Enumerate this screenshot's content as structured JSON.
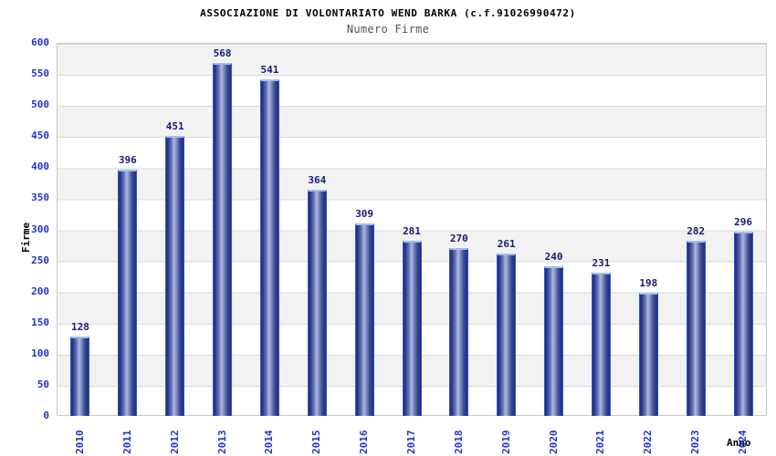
{
  "chart_data": {
    "type": "bar",
    "title": "ASSOCIAZIONE DI VOLONTARIATO WEND BARKA (c.f.91026990472)",
    "subtitle": "Numero Firme",
    "xlabel": "Anno",
    "ylabel": "Firme",
    "categories": [
      "2010",
      "2011",
      "2012",
      "2013",
      "2014",
      "2015",
      "2016",
      "2017",
      "2018",
      "2019",
      "2020",
      "2021",
      "2022",
      "2023",
      "2024"
    ],
    "values": [
      128,
      396,
      451,
      568,
      541,
      364,
      309,
      281,
      270,
      261,
      240,
      231,
      198,
      282,
      296
    ],
    "ylim": [
      0,
      600
    ],
    "yticks": [
      0,
      50,
      100,
      150,
      200,
      250,
      300,
      350,
      400,
      450,
      500,
      550,
      600
    ],
    "grid": "horizontal gridlines with alternating gray/white bands every 50 units",
    "legend": "none",
    "colors": {
      "bar_edge_dark": "#1f2b7e",
      "bar_center_light": "#aeb8e2",
      "bar_border": "#2e55d8",
      "bar_top_cap": "#9fc0ee",
      "axis_tick_label": "#2233cc",
      "value_label": "#191975",
      "band_gray": "#f2f2f2",
      "gridline": "#dadada",
      "plot_border": "#c9c9c9",
      "title": "#000000",
      "subtitle": "#545454",
      "background": "#ffffff"
    }
  }
}
